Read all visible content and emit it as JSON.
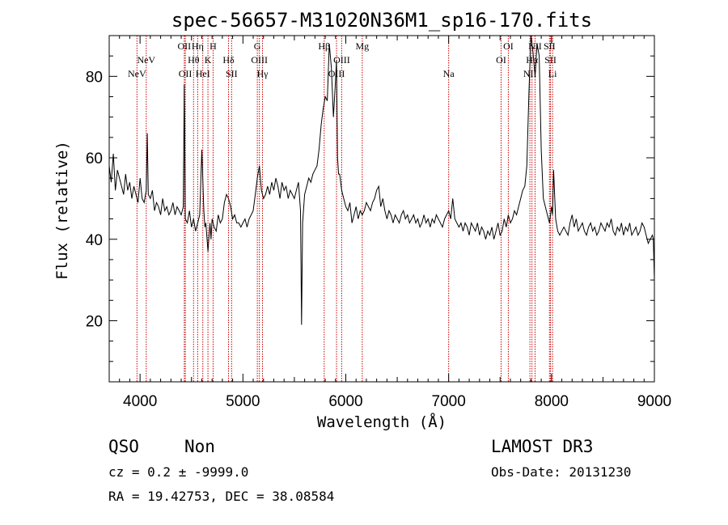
{
  "chart_data": {
    "type": "line",
    "title": "spec-56657-M31020N36M1_sp16-170.fits",
    "xlabel": "Wavelength (Å)",
    "ylabel": "Flux (relative)",
    "xlim": [
      3700,
      9000
    ],
    "ylim": [
      5,
      90
    ],
    "xticks": [
      4000,
      5000,
      6000,
      7000,
      8000,
      9000
    ],
    "yticks": [
      20,
      40,
      60,
      80
    ],
    "grid": false,
    "series": [
      {
        "x": [
          3700,
          3720,
          3740,
          3760,
          3780,
          3800,
          3820,
          3840,
          3860,
          3880,
          3900,
          3920,
          3940,
          3960,
          3980,
          4000,
          4020,
          4040,
          4060,
          4070,
          4080,
          4100,
          4120,
          4140,
          4160,
          4180,
          4200,
          4220,
          4240,
          4260,
          4280,
          4300,
          4320,
          4340,
          4360,
          4380,
          4400,
          4420,
          4430,
          4440,
          4460,
          4480,
          4500,
          4520,
          4540,
          4560,
          4580,
          4600,
          4620,
          4630,
          4640,
          4660,
          4680,
          4690,
          4700,
          4720,
          4740,
          4760,
          4780,
          4800,
          4820,
          4840,
          4860,
          4880,
          4900,
          4920,
          4940,
          4960,
          4980,
          5000,
          5020,
          5040,
          5060,
          5080,
          5100,
          5120,
          5140,
          5160,
          5180,
          5200,
          5220,
          5240,
          5260,
          5280,
          5300,
          5320,
          5340,
          5360,
          5380,
          5400,
          5420,
          5440,
          5460,
          5480,
          5500,
          5520,
          5540,
          5560,
          5570,
          5580,
          5600,
          5620,
          5640,
          5660,
          5680,
          5700,
          5720,
          5740,
          5760,
          5780,
          5800,
          5820,
          5840,
          5860,
          5880,
          5900,
          5910,
          5920,
          5930,
          5940,
          5960,
          5980,
          6000,
          6020,
          6040,
          6060,
          6080,
          6100,
          6120,
          6140,
          6160,
          6180,
          6200,
          6220,
          6240,
          6260,
          6280,
          6300,
          6320,
          6340,
          6360,
          6380,
          6400,
          6420,
          6440,
          6460,
          6480,
          6500,
          6520,
          6540,
          6560,
          6580,
          6600,
          6620,
          6640,
          6660,
          6680,
          6700,
          6720,
          6740,
          6760,
          6780,
          6800,
          6820,
          6840,
          6860,
          6880,
          6900,
          6920,
          6940,
          6960,
          6980,
          7000,
          7020,
          7040,
          7060,
          7080,
          7100,
          7120,
          7140,
          7160,
          7180,
          7200,
          7220,
          7240,
          7260,
          7280,
          7300,
          7320,
          7340,
          7360,
          7380,
          7400,
          7420,
          7440,
          7460,
          7480,
          7500,
          7520,
          7540,
          7560,
          7580,
          7600,
          7620,
          7640,
          7660,
          7680,
          7700,
          7720,
          7740,
          7760,
          7780,
          7800,
          7820,
          7840,
          7860,
          7880,
          7900,
          7920,
          7940,
          7960,
          7980,
          7990,
          8000,
          8010,
          8020,
          8040,
          8060,
          8080,
          8100,
          8120,
          8140,
          8160,
          8180,
          8200,
          8220,
          8240,
          8260,
          8280,
          8300,
          8320,
          8340,
          8360,
          8380,
          8400,
          8420,
          8440,
          8460,
          8480,
          8500,
          8520,
          8540,
          8560,
          8580,
          8600,
          8620,
          8640,
          8660,
          8680,
          8700,
          8720,
          8740,
          8760,
          8780,
          8800,
          8820,
          8840,
          8860,
          8880,
          8900,
          8920,
          8940,
          8960,
          8980,
          8990,
          9000
        ],
        "y": [
          58,
          54,
          61,
          52,
          57,
          55,
          53,
          51,
          56,
          52,
          54,
          50,
          53,
          51,
          49,
          55,
          50,
          49,
          52,
          66,
          51,
          50,
          52,
          47,
          49,
          48,
          46,
          50,
          47,
          48,
          46,
          47,
          49,
          46,
          48,
          47,
          46,
          48,
          78,
          45,
          44,
          47,
          43,
          45,
          42,
          44,
          46,
          62,
          47,
          43,
          44,
          37,
          44,
          40,
          45,
          43,
          42,
          46,
          44,
          45,
          49,
          51,
          50,
          48,
          45,
          46,
          44,
          44,
          43,
          44,
          45,
          43,
          45,
          46,
          47,
          51,
          55,
          58,
          52,
          50,
          51,
          53,
          51,
          54,
          52,
          55,
          53,
          50,
          54,
          52,
          53,
          50,
          52,
          51,
          50,
          52,
          54,
          47,
          19,
          44,
          51,
          53,
          55,
          54,
          56,
          57,
          58,
          62,
          68,
          72,
          75,
          74,
          88,
          82,
          70,
          79,
          84,
          60,
          56,
          56,
          52,
          50,
          48,
          47,
          49,
          44,
          46,
          48,
          45,
          47,
          46,
          47,
          49,
          48,
          47,
          49,
          50,
          52,
          53,
          48,
          50,
          47,
          45,
          47,
          46,
          44,
          46,
          45,
          44,
          46,
          47,
          45,
          46,
          44,
          45,
          46,
          44,
          45,
          43,
          44,
          46,
          44,
          45,
          43,
          45,
          44,
          46,
          45,
          44,
          43,
          45,
          46,
          47,
          45,
          50,
          45,
          44,
          43,
          44,
          42,
          44,
          43,
          41,
          44,
          43,
          42,
          44,
          41,
          43,
          42,
          40,
          42,
          41,
          43,
          40,
          42,
          44,
          41,
          42,
          45,
          43,
          46,
          44,
          45,
          47,
          46,
          48,
          50,
          52,
          53,
          58,
          76,
          90,
          86,
          80,
          88,
          85,
          62,
          50,
          48,
          46,
          44,
          46,
          48,
          46,
          57,
          45,
          42,
          41,
          42,
          43,
          42,
          41,
          44,
          46,
          43,
          45,
          42,
          43,
          44,
          42,
          41,
          43,
          44,
          42,
          43,
          41,
          42,
          44,
          43,
          42,
          44,
          43,
          45,
          42,
          41,
          43,
          42,
          44,
          41,
          43,
          42,
          44,
          41,
          42,
          43,
          41,
          42,
          44,
          43,
          41,
          39,
          40,
          41,
          40,
          30
        ]
      }
    ],
    "emission_lines": [
      {
        "label": "NeV",
        "wl": 3970,
        "row": 2
      },
      {
        "label": "NeV",
        "wl": 4060,
        "row": 1
      },
      {
        "label": "OII",
        "wl": 4430,
        "row": 0
      },
      {
        "label": "OII",
        "wl": 4440,
        "row": 2
      },
      {
        "label": "Hθ",
        "wl": 4520,
        "row": 1
      },
      {
        "label": "Hη",
        "wl": 4560,
        "row": 0
      },
      {
        "label": "HeI",
        "wl": 4610,
        "row": 2
      },
      {
        "label": "K",
        "wl": 4660,
        "row": 1
      },
      {
        "label": "H",
        "wl": 4710,
        "row": 0
      },
      {
        "label": "Hδ",
        "wl": 4860,
        "row": 1
      },
      {
        "label": "SII",
        "wl": 4890,
        "row": 2
      },
      {
        "label": "G",
        "wl": 5140,
        "row": 0
      },
      {
        "label": "OIII",
        "wl": 5160,
        "row": 1
      },
      {
        "label": "Hγ",
        "wl": 5190,
        "row": 2
      },
      {
        "label": "Hβ",
        "wl": 5790,
        "row": 0
      },
      {
        "label": "OIII",
        "wl": 5910,
        "row": 2
      },
      {
        "label": "OIII",
        "wl": 5960,
        "row": 1
      },
      {
        "label": "Mg",
        "wl": 6160,
        "row": 0
      },
      {
        "label": "Na",
        "wl": 7000,
        "row": 2
      },
      {
        "label": "OI",
        "wl": 7510,
        "row": 1
      },
      {
        "label": "OI",
        "wl": 7580,
        "row": 0
      },
      {
        "label": "NII",
        "wl": 7790,
        "row": 2
      },
      {
        "label": "Hα",
        "wl": 7810,
        "row": 1
      },
      {
        "label": "NII",
        "wl": 7840,
        "row": 0
      },
      {
        "label": "SII",
        "wl": 7980,
        "row": 0
      },
      {
        "label": "SII",
        "wl": 7990,
        "row": 1
      },
      {
        "label": "Li",
        "wl": 8010,
        "row": 2
      }
    ]
  },
  "info": {
    "class": "QSO",
    "subclass": "Non",
    "survey": "LAMOST DR3",
    "cz": "cz = 0.2 ± -9999.0",
    "obs_date": "Obs-Date: 20131230",
    "radec": "RA =  19.42753, DEC =  38.08584"
  },
  "colors": {
    "spectrum": "#000000",
    "line_marker": "#cc0000",
    "axes": "#000000"
  }
}
